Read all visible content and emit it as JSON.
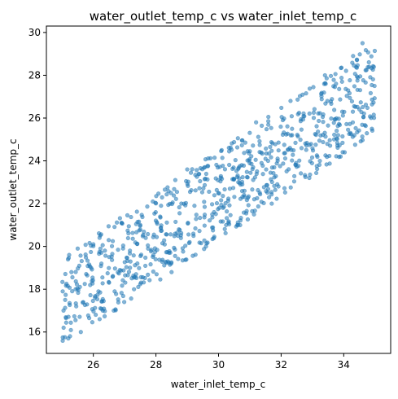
{
  "chart_data": {
    "type": "scatter",
    "title": "water_outlet_temp_c vs water_inlet_temp_c",
    "xlabel": "water_inlet_temp_c",
    "ylabel": "water_outlet_temp_c",
    "xlim": [
      24.5,
      35.5
    ],
    "ylim": [
      15.0,
      30.3
    ],
    "x_ticks": [
      26,
      28,
      30,
      32,
      34
    ],
    "y_ticks": [
      16,
      18,
      20,
      22,
      24,
      26,
      28,
      30
    ],
    "grid": false,
    "legend": "none",
    "marker_color": "#1f77b4",
    "marker_alpha": 0.55,
    "n_points": 850,
    "relationship": {
      "lower_bound": "y ≈ x - 9.7",
      "upper_bound": "y ≈ x - 5.5"
    },
    "sample_points": [
      [
        25.05,
        16.2
      ],
      [
        25.1,
        17.5
      ],
      [
        25.2,
        15.7
      ],
      [
        25.3,
        18.8
      ],
      [
        25.5,
        19.9
      ],
      [
        25.6,
        16.0
      ],
      [
        26.0,
        20.1
      ],
      [
        26.3,
        17.0
      ],
      [
        26.9,
        21.1
      ],
      [
        27.3,
        18.0
      ],
      [
        27.9,
        22.1
      ],
      [
        28.5,
        18.8
      ],
      [
        29.0,
        23.6
      ],
      [
        29.6,
        20.0
      ],
      [
        30.1,
        24.5
      ],
      [
        30.6,
        21.0
      ],
      [
        31.2,
        25.8
      ],
      [
        31.7,
        22.0
      ],
      [
        32.3,
        26.8
      ],
      [
        32.9,
        23.2
      ],
      [
        33.4,
        28.0
      ],
      [
        33.9,
        24.2
      ],
      [
        34.3,
        28.9
      ],
      [
        34.6,
        29.5
      ],
      [
        34.9,
        25.5
      ]
    ]
  }
}
